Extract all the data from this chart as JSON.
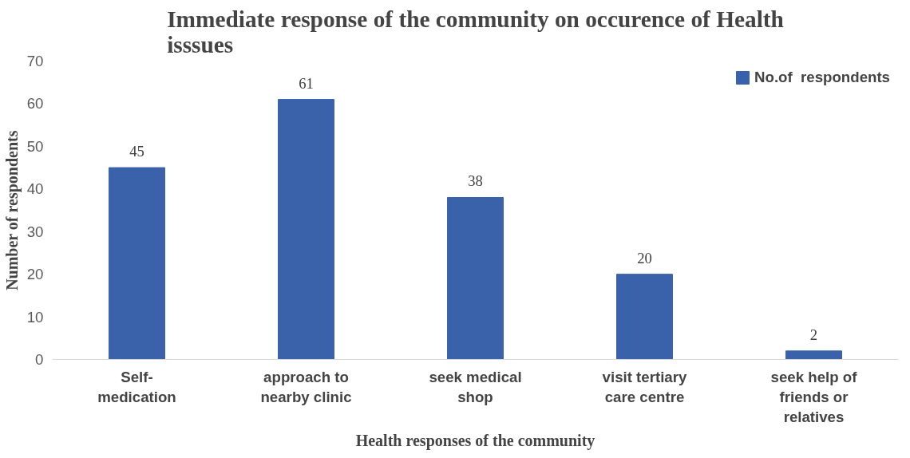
{
  "chart_data": {
    "type": "bar",
    "title": "Immediate response of the community on occurence of Health isssues",
    "xlabel": "Health responses of the community",
    "ylabel": "Number of respondents",
    "categories": [
      "Self-medication",
      "approach to nearby clinic",
      "seek medical shop",
      "visit tertiary care centre",
      "seek help of friends or relatives"
    ],
    "series": [
      {
        "name": "No.of  respondents",
        "color": "#3a62ab",
        "values": [
          45,
          61,
          38,
          20,
          2
        ]
      }
    ],
    "ylim": [
      0,
      70
    ],
    "yticks": [
      0,
      10,
      20,
      30,
      40,
      50,
      60,
      70
    ],
    "data_labels": true,
    "grid": false,
    "legend": "top right"
  }
}
